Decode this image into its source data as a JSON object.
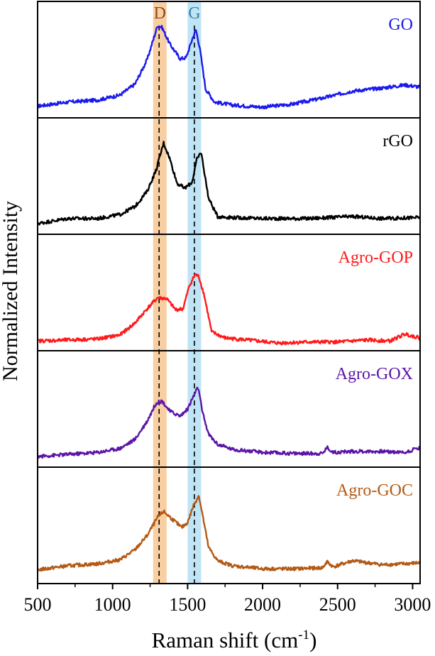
{
  "chart_data": {
    "type": "line",
    "title": "",
    "xlabel": "Raman shift (cm",
    "xlabel_sup": "-1",
    "xlabel_close": ")",
    "ylabel": "Normalized Intensity",
    "xlim": [
      500,
      3050
    ],
    "ylim": [
      0,
      1
    ],
    "grid": false,
    "xticks": [
      500,
      1000,
      1500,
      2000,
      2500,
      3000
    ],
    "xtick_labels": [
      "500",
      "1000",
      "1500",
      "2000",
      "2500",
      "3000"
    ],
    "bands": [
      {
        "label": "D",
        "from": 1270,
        "to": 1360,
        "center": 1310,
        "color": "#f8cfa2",
        "label_color": "#8b4a1a"
      },
      {
        "label": "G",
        "from": 1500,
        "to": 1590,
        "center": 1545,
        "color": "#bfe4f6",
        "label_color": "#3a7fa8"
      }
    ],
    "series": [
      {
        "name": "GO",
        "color": "#1a1aee",
        "x": [
          500,
          700,
          900,
          1050,
          1150,
          1230,
          1300,
          1330,
          1380,
          1450,
          1490,
          1530,
          1555,
          1580,
          1620,
          1680,
          1800,
          2000,
          2200,
          2400,
          2600,
          2800,
          2950,
          3050
        ],
        "y": [
          0.06,
          0.1,
          0.12,
          0.17,
          0.28,
          0.52,
          0.86,
          0.84,
          0.68,
          0.53,
          0.54,
          0.72,
          0.82,
          0.65,
          0.23,
          0.1,
          0.07,
          0.05,
          0.08,
          0.14,
          0.21,
          0.24,
          0.27,
          0.25
        ]
      },
      {
        "name": "rGO",
        "color": "#000000",
        "x": [
          500,
          700,
          900,
          1050,
          1150,
          1230,
          1290,
          1340,
          1380,
          1430,
          1480,
          1530,
          1560,
          1590,
          1640,
          1700,
          1800,
          2000,
          2300,
          2600,
          2800,
          3050
        ],
        "y": [
          0.05,
          0.1,
          0.1,
          0.14,
          0.22,
          0.37,
          0.58,
          0.85,
          0.7,
          0.45,
          0.4,
          0.46,
          0.68,
          0.76,
          0.3,
          0.12,
          0.11,
          0.1,
          0.1,
          0.12,
          0.1,
          0.11
        ]
      },
      {
        "name": "Agro-GOP",
        "color": "#ff1a1a",
        "x": [
          500,
          700,
          900,
          1050,
          1150,
          1230,
          1300,
          1360,
          1420,
          1470,
          1510,
          1550,
          1575,
          1610,
          1660,
          1750,
          1900,
          2100,
          2300,
          2500,
          2700,
          2850,
          2950,
          3050
        ],
        "y": [
          0.04,
          0.05,
          0.06,
          0.1,
          0.22,
          0.36,
          0.47,
          0.46,
          0.35,
          0.36,
          0.58,
          0.7,
          0.68,
          0.5,
          0.13,
          0.07,
          0.05,
          0.02,
          0.03,
          0.03,
          0.05,
          0.04,
          0.11,
          0.07
        ]
      },
      {
        "name": "Agro-GOX",
        "color": "#5b15a6",
        "x": [
          500,
          700,
          900,
          1050,
          1150,
          1230,
          1290,
          1330,
          1380,
          1450,
          1500,
          1540,
          1570,
          1600,
          1640,
          1700,
          1800,
          2000,
          2200,
          2400,
          2430,
          2470,
          2600,
          2800,
          2950,
          3050
        ],
        "y": [
          0.05,
          0.07,
          0.09,
          0.13,
          0.22,
          0.4,
          0.58,
          0.6,
          0.5,
          0.45,
          0.52,
          0.65,
          0.74,
          0.48,
          0.27,
          0.17,
          0.12,
          0.09,
          0.08,
          0.08,
          0.14,
          0.09,
          0.1,
          0.1,
          0.09,
          0.14
        ]
      },
      {
        "name": "Agro-GOC",
        "color": "#b35a15",
        "x": [
          500,
          700,
          900,
          1050,
          1150,
          1230,
          1300,
          1340,
          1400,
          1460,
          1500,
          1540,
          1575,
          1600,
          1640,
          1700,
          1800,
          2000,
          2200,
          2400,
          2430,
          2470,
          2600,
          2800,
          2950,
          3050
        ],
        "y": [
          0.08,
          0.12,
          0.14,
          0.18,
          0.28,
          0.42,
          0.6,
          0.66,
          0.58,
          0.5,
          0.55,
          0.72,
          0.82,
          0.62,
          0.3,
          0.17,
          0.12,
          0.09,
          0.09,
          0.1,
          0.16,
          0.11,
          0.17,
          0.13,
          0.14,
          0.15
        ]
      }
    ]
  }
}
